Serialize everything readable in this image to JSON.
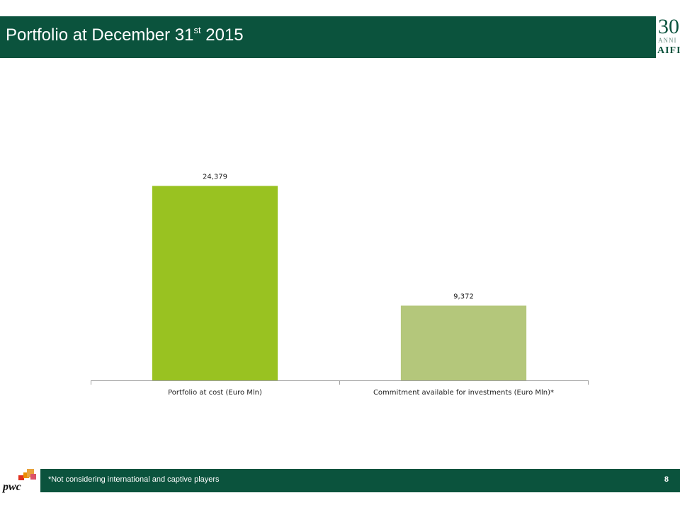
{
  "header": {
    "title_main": "Portfolio at December 31",
    "title_sup": "st",
    "title_year": " 2015"
  },
  "logo": {
    "number": "30",
    "anni": "ANNI",
    "brand": "AIFI"
  },
  "chart_data": {
    "type": "bar",
    "categories": [
      "Portfolio at cost (Euro Mln)",
      "Commitment available for investments (Euro Mln)*"
    ],
    "values": [
      24379,
      9372
    ],
    "data_labels": [
      "24,379",
      "9,372"
    ],
    "bar_colors": [
      "#99c221",
      "#b4c77b"
    ],
    "title": "",
    "xlabel": "",
    "ylabel": "",
    "ylim": [
      0,
      27000
    ],
    "grid": false,
    "legend": "none"
  },
  "footer": {
    "note": "*Not considering international and captive players",
    "page_number": "8",
    "brand": "pwc"
  },
  "colors": {
    "brand_green": "#0b533d",
    "bar_primary": "#99c221",
    "bar_secondary": "#b4c77b"
  }
}
